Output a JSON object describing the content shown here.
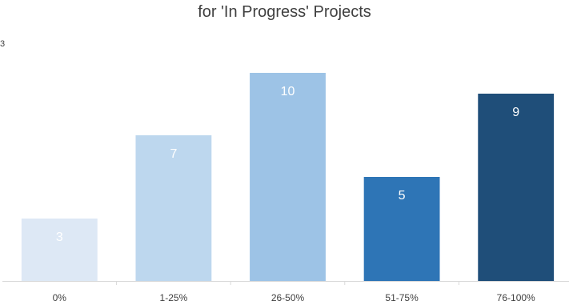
{
  "chart_data": {
    "type": "bar",
    "title": "for 'In Progress' Projects",
    "corner_text": "3",
    "categories": [
      "0%",
      "1-25%",
      "26-50%",
      "51-75%",
      "76-100%"
    ],
    "values": [
      3,
      7,
      10,
      5,
      9
    ],
    "bar_colors": [
      "#dde8f5",
      "#bdd7ee",
      "#9dc3e6",
      "#2e75b6",
      "#1f4e79"
    ],
    "label_colors": [
      "#ffffff",
      "#ffffff",
      "#ffffff",
      "#ffffff",
      "#ffffff"
    ],
    "ylim": [
      0,
      10.5
    ],
    "grid": false,
    "legend": "none",
    "xlabel": "",
    "ylabel": ""
  }
}
